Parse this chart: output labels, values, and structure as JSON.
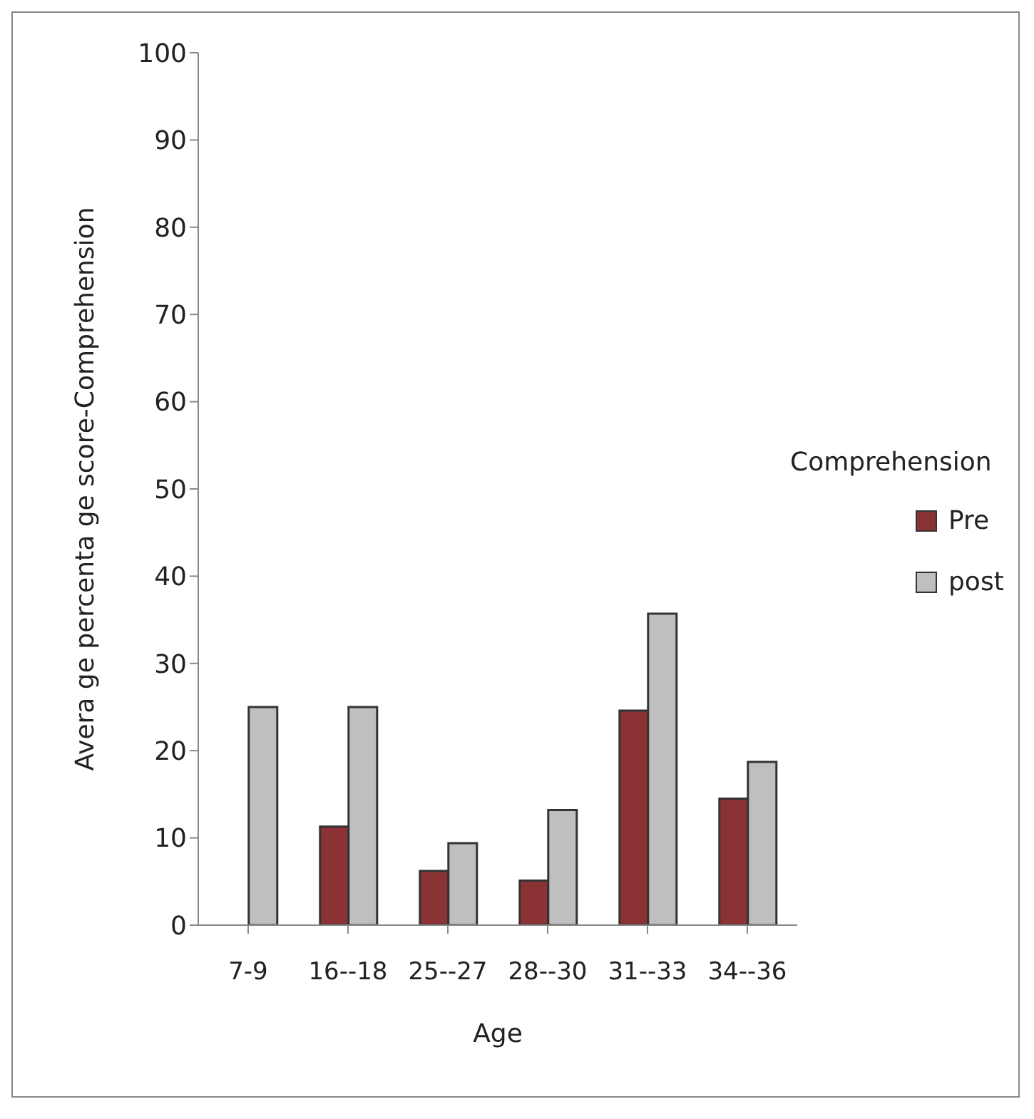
{
  "chart_data": {
    "type": "bar",
    "xlabel": "Age",
    "ylabel": "Avera ge percenta ge score-Comprehension",
    "legend_title": "Comprehension",
    "categories": [
      "7-9",
      "16--18",
      "25--27",
      "28--30",
      "31--33",
      "34--36"
    ],
    "series": [
      {
        "name": "Pre",
        "color": "#8b3334",
        "values": [
          null,
          11.3,
          6.2,
          5.1,
          24.6,
          14.5
        ]
      },
      {
        "name": "post",
        "color": "#bfbfbf",
        "values": [
          25,
          25,
          9.4,
          13.2,
          35.7,
          18.7
        ]
      }
    ],
    "ylim": [
      0,
      100
    ],
    "yticks": [
      0,
      10,
      20,
      30,
      40,
      50,
      60,
      70,
      80,
      90,
      100
    ],
    "grid": false,
    "legend": "right"
  }
}
